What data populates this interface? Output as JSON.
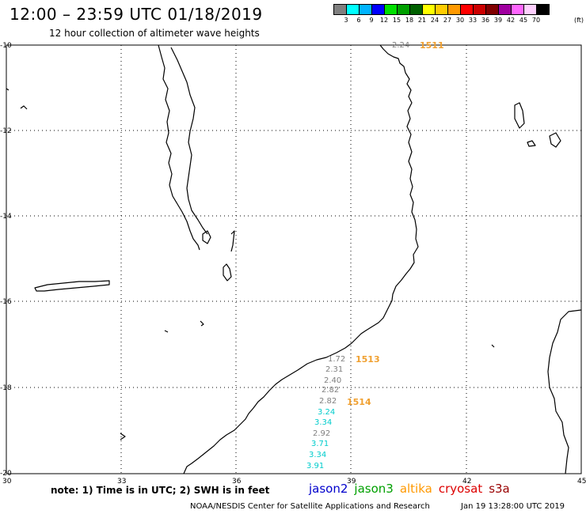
{
  "header": {
    "title": "12:00 – 23:59 UTC 01/18/2019",
    "subtitle": "12 hour collection of altimeter wave heights"
  },
  "legend": {
    "colors": [
      "#808080",
      "#00ffff",
      "#00b4ff",
      "#0000ff",
      "#00e000",
      "#00a000",
      "#006000",
      "#ffff00",
      "#ffcc00",
      "#ff9900",
      "#ff0000",
      "#cc0000",
      "#800000",
      "#a000a0",
      "#ff66ff",
      "#ffd0ff",
      "#000000"
    ],
    "labels": [
      "3",
      "6",
      "9",
      "12",
      "15",
      "18",
      "21",
      "24",
      "27",
      "30",
      "33",
      "36",
      "39",
      "42",
      "45",
      "70"
    ],
    "unit": "(ft)"
  },
  "map": {
    "lat_labels": [
      "-10",
      "-12",
      "-14",
      "-16",
      "-18",
      "-20"
    ],
    "lon_labels": [
      "30",
      "33",
      "36",
      "39",
      "42",
      "45"
    ],
    "observations": [
      {
        "value": "2.24",
        "color": "#808080"
      },
      {
        "value": "1.72",
        "color": "#808080"
      },
      {
        "value": "2.31",
        "color": "#808080"
      },
      {
        "value": "2.40",
        "color": "#808080"
      },
      {
        "value": "2.82",
        "color": "#808080"
      },
      {
        "value": "2.82",
        "color": "#808080"
      },
      {
        "value": "3.24",
        "color": "#00cccc"
      },
      {
        "value": "3.34",
        "color": "#00cccc"
      },
      {
        "value": "2.92",
        "color": "#808080"
      },
      {
        "value": "3.71",
        "color": "#00cccc"
      },
      {
        "value": "3.34",
        "color": "#00cccc"
      },
      {
        "value": "3.91",
        "color": "#00cccc"
      }
    ],
    "time_labels": [
      "1511",
      "1513",
      "1514"
    ]
  },
  "footer": {
    "note": "note: 1) Time is in UTC; 2) SWH is in feet",
    "satellites": [
      {
        "name": "jason2",
        "color": "#0000cc"
      },
      {
        "name": "jason3",
        "color": "#00a000"
      },
      {
        "name": "altika",
        "color": "#ff9900"
      },
      {
        "name": "cryosat",
        "color": "#dd0000"
      },
      {
        "name": "s3a",
        "color": "#990000"
      }
    ],
    "credit": "NOAA/NESDIS Center for Satellite Applications and Research",
    "timestamp": "Jan 19 13:28:00 UTC 2019"
  }
}
